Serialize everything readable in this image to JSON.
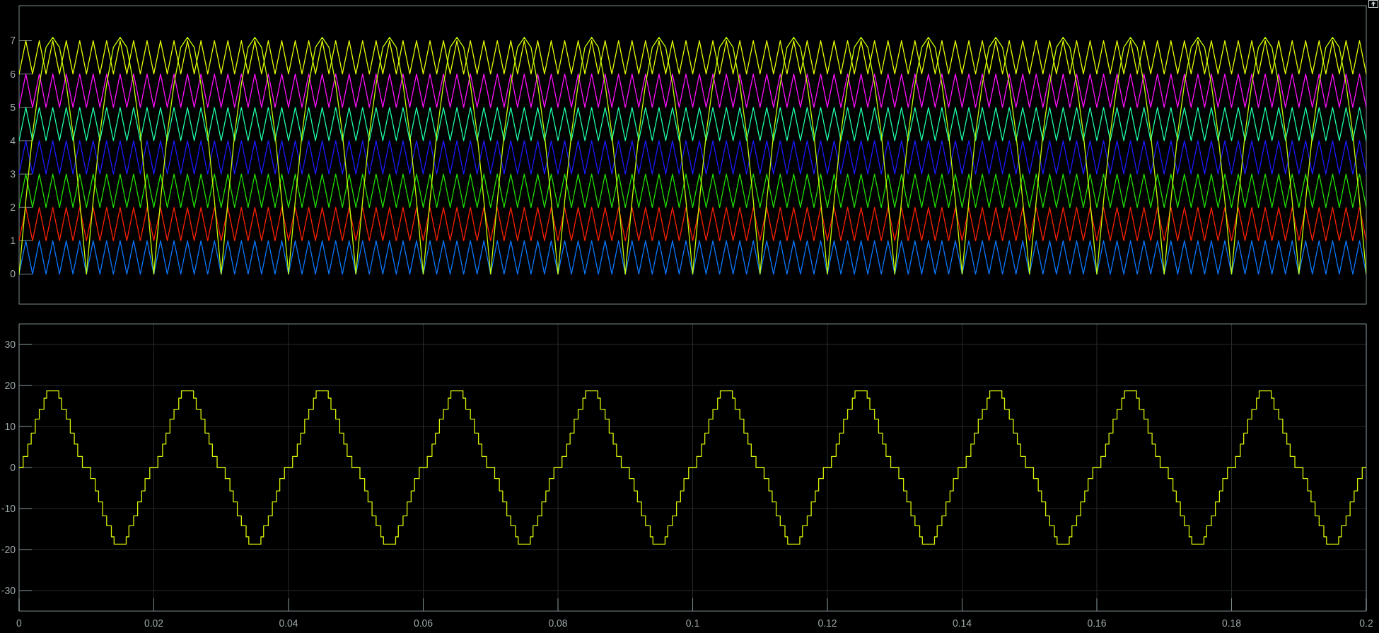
{
  "chart_data": [
    {
      "type": "line",
      "xlim": [
        0,
        0.2
      ],
      "ylim": [
        -0.9,
        8.05
      ],
      "yticks": [
        0,
        1,
        2,
        3,
        4,
        5,
        6,
        7
      ],
      "tick_labels": "y",
      "x": [
        0,
        0.001,
        0.002,
        0.003,
        0.004,
        0.005,
        0.006,
        0.007,
        0.008,
        0.009,
        0.01,
        0.011,
        0.012,
        0.013,
        0.014,
        0.015,
        0.016,
        0.017,
        0.018,
        0.019,
        0.02,
        0.021,
        0.022,
        0.023,
        0.024,
        0.025,
        0.026,
        0.027,
        0.028,
        0.029,
        0.03,
        0.031,
        0.032,
        0.033,
        0.034,
        0.035,
        0.036,
        0.037,
        0.038,
        0.039,
        0.04,
        0.041,
        0.042,
        0.043,
        0.044,
        0.045,
        0.046,
        0.047,
        0.048,
        0.049,
        0.05,
        0.051,
        0.052,
        0.053,
        0.054,
        0.055,
        0.056,
        0.057,
        0.058,
        0.059,
        0.06,
        0.061,
        0.062,
        0.063,
        0.064,
        0.065,
        0.066,
        0.067,
        0.068,
        0.069,
        0.07,
        0.071,
        0.072,
        0.073,
        0.074,
        0.075,
        0.076,
        0.077,
        0.078,
        0.079,
        0.08,
        0.081,
        0.082,
        0.083,
        0.084,
        0.085,
        0.086,
        0.087,
        0.088,
        0.089,
        0.09,
        0.091,
        0.092,
        0.093,
        0.094,
        0.095,
        0.096,
        0.097,
        0.098,
        0.099,
        0.1,
        0.101,
        0.102,
        0.103,
        0.104,
        0.105,
        0.106,
        0.107,
        0.108,
        0.109,
        0.11,
        0.111,
        0.112,
        0.113,
        0.114,
        0.115,
        0.116,
        0.117,
        0.118,
        0.119,
        0.12,
        0.121,
        0.122,
        0.123,
        0.124,
        0.125,
        0.126,
        0.127,
        0.128,
        0.129,
        0.13,
        0.131,
        0.132,
        0.133,
        0.134,
        0.135,
        0.136,
        0.137,
        0.138,
        0.139,
        0.14,
        0.141,
        0.142,
        0.143,
        0.144,
        0.145,
        0.146,
        0.147,
        0.148,
        0.149,
        0.15,
        0.151,
        0.152,
        0.153,
        0.154,
        0.155,
        0.156,
        0.157,
        0.158,
        0.159,
        0.16,
        0.161,
        0.162,
        0.163,
        0.164,
        0.165,
        0.166,
        0.167,
        0.168,
        0.169,
        0.17,
        0.171,
        0.172,
        0.173,
        0.174,
        0.175,
        0.176,
        0.177,
        0.178,
        0.179,
        0.18,
        0.181,
        0.182,
        0.183,
        0.184,
        0.185,
        0.186,
        0.187,
        0.188,
        0.189,
        0.19,
        0.191,
        0.192,
        0.193,
        0.194,
        0.195,
        0.196,
        0.197,
        0.198,
        0.199,
        0.2
      ],
      "series": [
        {
          "color": "#0a78ff",
          "values": [
            0,
            1,
            0,
            1,
            0,
            1,
            0,
            1,
            0,
            1,
            0,
            1,
            0,
            1,
            0,
            1,
            0,
            1,
            0,
            1,
            0,
            1,
            0,
            1,
            0,
            1,
            0,
            1,
            0,
            1,
            0,
            1,
            0,
            1,
            0,
            1,
            0,
            1,
            0,
            1,
            0,
            1,
            0,
            1,
            0,
            1,
            0,
            1,
            0,
            1,
            0,
            1,
            0,
            1,
            0,
            1,
            0,
            1,
            0,
            1,
            0,
            1,
            0,
            1,
            0,
            1,
            0,
            1,
            0,
            1,
            0,
            1,
            0,
            1,
            0,
            1,
            0,
            1,
            0,
            1,
            0,
            1,
            0,
            1,
            0,
            1,
            0,
            1,
            0,
            1,
            0,
            1,
            0,
            1,
            0,
            1,
            0,
            1,
            0,
            1,
            0,
            1,
            0,
            1,
            0,
            1,
            0,
            1,
            0,
            1,
            0,
            1,
            0,
            1,
            0,
            1,
            0,
            1,
            0,
            1,
            0,
            1,
            0,
            1,
            0,
            1,
            0,
            1,
            0,
            1,
            0,
            1,
            0,
            1,
            0,
            1,
            0,
            1,
            0,
            1,
            0,
            1,
            0,
            1,
            0,
            1,
            0,
            1,
            0,
            1,
            0,
            1,
            0,
            1,
            0,
            1,
            0,
            1,
            0,
            1,
            0,
            1,
            0,
            1,
            0,
            1,
            0,
            1,
            0,
            1,
            0,
            1,
            0,
            1,
            0,
            1,
            0,
            1,
            0,
            1,
            0,
            1,
            0,
            1,
            0,
            1,
            0,
            1,
            0,
            1,
            0,
            1,
            0,
            1,
            0,
            1,
            0,
            1,
            0,
            1,
            0
          ]
        },
        {
          "color": "#ff2200",
          "values": [
            1,
            2,
            1,
            2,
            1,
            2,
            1,
            2,
            1,
            2,
            1,
            2,
            1,
            2,
            1,
            2,
            1,
            2,
            1,
            2,
            1,
            2,
            1,
            2,
            1,
            2,
            1,
            2,
            1,
            2,
            1,
            2,
            1,
            2,
            1,
            2,
            1,
            2,
            1,
            2,
            1,
            2,
            1,
            2,
            1,
            2,
            1,
            2,
            1,
            2,
            1,
            2,
            1,
            2,
            1,
            2,
            1,
            2,
            1,
            2,
            1,
            2,
            1,
            2,
            1,
            2,
            1,
            2,
            1,
            2,
            1,
            2,
            1,
            2,
            1,
            2,
            1,
            2,
            1,
            2,
            1,
            2,
            1,
            2,
            1,
            2,
            1,
            2,
            1,
            2,
            1,
            2,
            1,
            2,
            1,
            2,
            1,
            2,
            1,
            2,
            1,
            2,
            1,
            2,
            1,
            2,
            1,
            2,
            1,
            2,
            1,
            2,
            1,
            2,
            1,
            2,
            1,
            2,
            1,
            2,
            1,
            2,
            1,
            2,
            1,
            2,
            1,
            2,
            1,
            2,
            1,
            2,
            1,
            2,
            1,
            2,
            1,
            2,
            1,
            2,
            1,
            2,
            1,
            2,
            1,
            2,
            1,
            2,
            1,
            2,
            1,
            2,
            1,
            2,
            1,
            2,
            1,
            2,
            1,
            2,
            1,
            2,
            1,
            2,
            1,
            2,
            1,
            2,
            1,
            2,
            1,
            2,
            1,
            2,
            1,
            2,
            1,
            2,
            1,
            2,
            1,
            2,
            1,
            2,
            1,
            2,
            1,
            2,
            1,
            2,
            1,
            2,
            1,
            2,
            1,
            2,
            1,
            2,
            1,
            2,
            1
          ]
        },
        {
          "color": "#22e000",
          "values": [
            2,
            3,
            2,
            3,
            2,
            3,
            2,
            3,
            2,
            3,
            2,
            3,
            2,
            3,
            2,
            3,
            2,
            3,
            2,
            3,
            2,
            3,
            2,
            3,
            2,
            3,
            2,
            3,
            2,
            3,
            2,
            3,
            2,
            3,
            2,
            3,
            2,
            3,
            2,
            3,
            2,
            3,
            2,
            3,
            2,
            3,
            2,
            3,
            2,
            3,
            2,
            3,
            2,
            3,
            2,
            3,
            2,
            3,
            2,
            3,
            2,
            3,
            2,
            3,
            2,
            3,
            2,
            3,
            2,
            3,
            2,
            3,
            2,
            3,
            2,
            3,
            2,
            3,
            2,
            3,
            2,
            3,
            2,
            3,
            2,
            3,
            2,
            3,
            2,
            3,
            2,
            3,
            2,
            3,
            2,
            3,
            2,
            3,
            2,
            3,
            2,
            3,
            2,
            3,
            2,
            3,
            2,
            3,
            2,
            3,
            2,
            3,
            2,
            3,
            2,
            3,
            2,
            3,
            2,
            3,
            2,
            3,
            2,
            3,
            2,
            3,
            2,
            3,
            2,
            3,
            2,
            3,
            2,
            3,
            2,
            3,
            2,
            3,
            2,
            3,
            2,
            3,
            2,
            3,
            2,
            3,
            2,
            3,
            2,
            3,
            2,
            3,
            2,
            3,
            2,
            3,
            2,
            3,
            2,
            3,
            2,
            3,
            2,
            3,
            2,
            3,
            2,
            3,
            2,
            3,
            2,
            3,
            2,
            3,
            2,
            3,
            2,
            3,
            2,
            3,
            2,
            3,
            2,
            3,
            2,
            3,
            2,
            3,
            2,
            3,
            2,
            3,
            2,
            3,
            2,
            3,
            2,
            3,
            2,
            3,
            2
          ]
        },
        {
          "color": "#1a1aff",
          "values": [
            3,
            4,
            3,
            4,
            3,
            4,
            3,
            4,
            3,
            4,
            3,
            4,
            3,
            4,
            3,
            4,
            3,
            4,
            3,
            4,
            3,
            4,
            3,
            4,
            3,
            4,
            3,
            4,
            3,
            4,
            3,
            4,
            3,
            4,
            3,
            4,
            3,
            4,
            3,
            4,
            3,
            4,
            3,
            4,
            3,
            4,
            3,
            4,
            3,
            4,
            3,
            4,
            3,
            4,
            3,
            4,
            3,
            4,
            3,
            4,
            3,
            4,
            3,
            4,
            3,
            4,
            3,
            4,
            3,
            4,
            3,
            4,
            3,
            4,
            3,
            4,
            3,
            4,
            3,
            4,
            3,
            4,
            3,
            4,
            3,
            4,
            3,
            4,
            3,
            4,
            3,
            4,
            3,
            4,
            3,
            4,
            3,
            4,
            3,
            4,
            3,
            4,
            3,
            4,
            3,
            4,
            3,
            4,
            3,
            4,
            3,
            4,
            3,
            4,
            3,
            4,
            3,
            4,
            3,
            4,
            3,
            4,
            3,
            4,
            3,
            4,
            3,
            4,
            3,
            4,
            3,
            4,
            3,
            4,
            3,
            4,
            3,
            4,
            3,
            4,
            3,
            4,
            3,
            4,
            3,
            4,
            3,
            4,
            3,
            4,
            3,
            4,
            3,
            4,
            3,
            4,
            3,
            4,
            3,
            4,
            3,
            4,
            3,
            4,
            3,
            4,
            3,
            4,
            3,
            4,
            3,
            4,
            3,
            4,
            3,
            4,
            3,
            4,
            3,
            4,
            3,
            4,
            3,
            4,
            3,
            4,
            3,
            4,
            3,
            4,
            3,
            4,
            3,
            4,
            3,
            4,
            3,
            4,
            3,
            4,
            3
          ]
        },
        {
          "color": "#1effa8",
          "values": [
            4,
            5,
            4,
            5,
            4,
            5,
            4,
            5,
            4,
            5,
            4,
            5,
            4,
            5,
            4,
            5,
            4,
            5,
            4,
            5,
            4,
            5,
            4,
            5,
            4,
            5,
            4,
            5,
            4,
            5,
            4,
            5,
            4,
            5,
            4,
            5,
            4,
            5,
            4,
            5,
            4,
            5,
            4,
            5,
            4,
            5,
            4,
            5,
            4,
            5,
            4,
            5,
            4,
            5,
            4,
            5,
            4,
            5,
            4,
            5,
            4,
            5,
            4,
            5,
            4,
            5,
            4,
            5,
            4,
            5,
            4,
            5,
            4,
            5,
            4,
            5,
            4,
            5,
            4,
            5,
            4,
            5,
            4,
            5,
            4,
            5,
            4,
            5,
            4,
            5,
            4,
            5,
            4,
            5,
            4,
            5,
            4,
            5,
            4,
            5,
            4,
            5,
            4,
            5,
            4,
            5,
            4,
            5,
            4,
            5,
            4,
            5,
            4,
            5,
            4,
            5,
            4,
            5,
            4,
            5,
            4,
            5,
            4,
            5,
            4,
            5,
            4,
            5,
            4,
            5,
            4,
            5,
            4,
            5,
            4,
            5,
            4,
            5,
            4,
            5,
            4,
            5,
            4,
            5,
            4,
            5,
            4,
            5,
            4,
            5,
            4,
            5,
            4,
            5,
            4,
            5,
            4,
            5,
            4,
            5,
            4,
            5,
            4,
            5,
            4,
            5,
            4,
            5,
            4,
            5,
            4,
            5,
            4,
            5,
            4,
            5,
            4,
            5,
            4,
            5,
            4,
            5,
            4,
            5,
            4,
            5,
            4,
            5,
            4,
            5,
            4,
            5,
            4,
            5,
            4,
            5,
            4,
            5,
            4,
            5,
            4
          ]
        },
        {
          "color": "#ff10ff",
          "values": [
            5,
            6,
            5,
            6,
            5,
            6,
            5,
            6,
            5,
            6,
            5,
            6,
            5,
            6,
            5,
            6,
            5,
            6,
            5,
            6,
            5,
            6,
            5,
            6,
            5,
            6,
            5,
            6,
            5,
            6,
            5,
            6,
            5,
            6,
            5,
            6,
            5,
            6,
            5,
            6,
            5,
            6,
            5,
            6,
            5,
            6,
            5,
            6,
            5,
            6,
            5,
            6,
            5,
            6,
            5,
            6,
            5,
            6,
            5,
            6,
            5,
            6,
            5,
            6,
            5,
            6,
            5,
            6,
            5,
            6,
            5,
            6,
            5,
            6,
            5,
            6,
            5,
            6,
            5,
            6,
            5,
            6,
            5,
            6,
            5,
            6,
            5,
            6,
            5,
            6,
            5,
            6,
            5,
            6,
            5,
            6,
            5,
            6,
            5,
            6,
            5,
            6,
            5,
            6,
            5,
            6,
            5,
            6,
            5,
            6,
            5,
            6,
            5,
            6,
            5,
            6,
            5,
            6,
            5,
            6,
            5,
            6,
            5,
            6,
            5,
            6,
            5,
            6,
            5,
            6,
            5,
            6,
            5,
            6,
            5,
            6,
            5,
            6,
            5,
            6,
            5,
            6,
            5,
            6,
            5,
            6,
            5,
            6,
            5,
            6,
            5,
            6,
            5,
            6,
            5,
            6,
            5,
            6,
            5,
            6,
            5,
            6,
            5,
            6,
            5,
            6,
            5,
            6,
            5,
            6,
            5,
            6,
            5,
            6,
            5,
            6,
            5,
            6,
            5,
            6,
            5,
            6,
            5,
            6,
            5,
            6,
            5,
            6,
            5,
            6,
            5,
            6,
            5,
            6,
            5,
            6,
            5,
            6,
            5,
            6,
            5
          ]
        },
        {
          "color": "#e8ff00",
          "values": [
            6,
            7,
            6,
            7,
            6,
            7,
            6,
            7,
            6,
            7,
            6,
            7,
            6,
            7,
            6,
            7,
            6,
            7,
            6,
            7,
            6,
            7,
            6,
            7,
            6,
            7,
            6,
            7,
            6,
            7,
            6,
            7,
            6,
            7,
            6,
            7,
            6,
            7,
            6,
            7,
            6,
            7,
            6,
            7,
            6,
            7,
            6,
            7,
            6,
            7,
            6,
            7,
            6,
            7,
            6,
            7,
            6,
            7,
            6,
            7,
            6,
            7,
            6,
            7,
            6,
            7,
            6,
            7,
            6,
            7,
            6,
            7,
            6,
            7,
            6,
            7,
            6,
            7,
            6,
            7,
            6,
            7,
            6,
            7,
            6,
            7,
            6,
            7,
            6,
            7,
            6,
            7,
            6,
            7,
            6,
            7,
            6,
            7,
            6,
            7,
            6,
            7,
            6,
            7,
            6,
            7,
            6,
            7,
            6,
            7,
            6,
            7,
            6,
            7,
            6,
            7,
            6,
            7,
            6,
            7,
            6,
            7,
            6,
            7,
            6,
            7,
            6,
            7,
            6,
            7,
            6,
            7,
            6,
            7,
            6,
            7,
            6,
            7,
            6,
            7,
            6,
            7,
            6,
            7,
            6,
            7,
            6,
            7,
            6,
            7,
            6,
            7,
            6,
            7,
            6,
            7,
            6,
            7,
            6,
            7,
            6,
            7,
            6,
            7,
            6,
            7,
            6,
            7,
            6,
            7,
            6,
            7,
            6,
            7,
            6,
            7,
            6,
            7,
            6,
            7,
            6,
            7,
            6,
            7,
            6,
            7,
            6,
            7,
            6,
            7,
            6,
            7,
            6,
            7,
            6,
            7,
            6,
            7,
            6,
            7,
            6
          ]
        },
        {
          "color": "#c8ff00",
          "values": [
            0,
            2.2,
            4.2,
            5.7,
            6.8,
            7.1,
            6.8,
            5.7,
            4.2,
            2.2,
            0,
            2.2,
            4.2,
            5.7,
            6.8,
            7.1,
            6.8,
            5.7,
            4.2,
            2.2,
            0,
            2.2,
            4.2,
            5.7,
            6.8,
            7.1,
            6.8,
            5.7,
            4.2,
            2.2,
            0,
            2.2,
            4.2,
            5.7,
            6.8,
            7.1,
            6.8,
            5.7,
            4.2,
            2.2,
            0,
            2.2,
            4.2,
            5.7,
            6.8,
            7.1,
            6.8,
            5.7,
            4.2,
            2.2,
            0,
            2.2,
            4.2,
            5.7,
            6.8,
            7.1,
            6.8,
            5.7,
            4.2,
            2.2,
            0,
            2.2,
            4.2,
            5.7,
            6.8,
            7.1,
            6.8,
            5.7,
            4.2,
            2.2,
            0,
            2.2,
            4.2,
            5.7,
            6.8,
            7.1,
            6.8,
            5.7,
            4.2,
            2.2,
            0,
            2.2,
            4.2,
            5.7,
            6.8,
            7.1,
            6.8,
            5.7,
            4.2,
            2.2,
            0,
            2.2,
            4.2,
            5.7,
            6.8,
            7.1,
            6.8,
            5.7,
            4.2,
            2.2,
            0,
            2.2,
            4.2,
            5.7,
            6.8,
            7.1,
            6.8,
            5.7,
            4.2,
            2.2,
            0,
            2.2,
            4.2,
            5.7,
            6.8,
            7.1,
            6.8,
            5.7,
            4.2,
            2.2,
            0,
            2.2,
            4.2,
            5.7,
            6.8,
            7.1,
            6.8,
            5.7,
            4.2,
            2.2,
            0,
            2.2,
            4.2,
            5.7,
            6.8,
            7.1,
            6.8,
            5.7,
            4.2,
            2.2,
            0,
            2.2,
            4.2,
            5.7,
            6.8,
            7.1,
            6.8,
            5.7,
            4.2,
            2.2,
            0,
            2.2,
            4.2,
            5.7,
            6.8,
            7.1,
            6.8,
            5.7,
            4.2,
            2.2,
            0,
            2.2,
            4.2,
            5.7,
            6.8,
            7.1,
            6.8,
            5.7,
            4.2,
            2.2,
            0,
            2.2,
            4.2,
            5.7,
            6.8,
            7.1,
            6.8,
            5.7,
            4.2,
            2.2,
            0,
            2.2,
            4.2,
            5.7,
            6.8,
            7.1,
            6.8,
            5.7,
            4.2,
            2.2,
            0,
            2.2,
            4.2,
            5.7,
            6.8,
            7.1,
            6.8,
            5.7,
            4.2,
            2.2,
            0
          ]
        }
      ]
    },
    {
      "type": "step",
      "xlim": [
        0,
        0.2
      ],
      "ylim": [
        -35,
        35
      ],
      "xticks": [
        0,
        0.02,
        0.04,
        0.06,
        0.08,
        0.1,
        0.12,
        0.14,
        0.16,
        0.18,
        0.2
      ],
      "yticks": [
        -30,
        -20,
        -10,
        0,
        10,
        20,
        30
      ],
      "grid": true,
      "x": [
        0,
        0.0006,
        0.0013,
        0.0018,
        0.0024,
        0.003,
        0.0037,
        0.0041,
        0.0059,
        0.0063,
        0.007,
        0.0076,
        0.0082,
        0.0087,
        0.0094,
        0.0106,
        0.0113,
        0.0118,
        0.0124,
        0.013,
        0.0137,
        0.0141,
        0.0159,
        0.0163,
        0.017,
        0.0176,
        0.0182,
        0.0187,
        0.0194,
        0.0206,
        0.0213,
        0.0218,
        0.0224,
        0.023,
        0.0237,
        0.0241,
        0.0259,
        0.0263,
        0.027,
        0.0276,
        0.0282,
        0.0287,
        0.0294,
        0.0306,
        0.0313,
        0.0318,
        0.0324,
        0.033,
        0.0337,
        0.0341,
        0.0359,
        0.0363,
        0.037,
        0.0376,
        0.0382,
        0.0387,
        0.0394,
        0.0406,
        0.0413,
        0.0418,
        0.0424,
        0.043,
        0.0437,
        0.0441,
        0.0459,
        0.0463,
        0.047,
        0.0476,
        0.0482,
        0.0487,
        0.0494,
        0.0506,
        0.0513,
        0.0518,
        0.0524,
        0.053,
        0.0537,
        0.0541,
        0.0559,
        0.0563,
        0.057,
        0.0576,
        0.0582,
        0.0587,
        0.0594,
        0.0606,
        0.0613,
        0.0618,
        0.0624,
        0.063,
        0.0637,
        0.0641,
        0.0659,
        0.0663,
        0.067,
        0.0676,
        0.0682,
        0.0687,
        0.0694,
        0.0706,
        0.0713,
        0.0718,
        0.0724,
        0.073,
        0.0737,
        0.0741,
        0.0759,
        0.0763,
        0.077,
        0.0776,
        0.0782,
        0.0787,
        0.0794,
        0.0806,
        0.0813,
        0.0818,
        0.0824,
        0.083,
        0.0837,
        0.0841,
        0.0859,
        0.0863,
        0.087,
        0.0876,
        0.0882,
        0.0887,
        0.0894,
        0.0906,
        0.0913,
        0.0918,
        0.0924,
        0.093,
        0.0937,
        0.0941,
        0.0959,
        0.0963,
        0.097,
        0.0976,
        0.0982,
        0.0987,
        0.0994,
        0.1006,
        0.1013,
        0.1018,
        0.1024,
        0.103,
        0.1037,
        0.1041,
        0.1059,
        0.1063,
        0.107,
        0.1076,
        0.1082,
        0.1087,
        0.1094,
        0.1106,
        0.1113,
        0.1118,
        0.1124,
        0.113,
        0.1137,
        0.1141,
        0.1159,
        0.1163,
        0.117,
        0.1176,
        0.1182,
        0.1187,
        0.1194,
        0.1206,
        0.1213,
        0.1218,
        0.1224,
        0.123,
        0.1237,
        0.1241,
        0.1259,
        0.1263,
        0.127,
        0.1276,
        0.1282,
        0.1287,
        0.1294,
        0.1306,
        0.1313,
        0.1318,
        0.1324,
        0.133,
        0.1337,
        0.1341,
        0.1359,
        0.1363,
        0.137,
        0.1376,
        0.1382,
        0.1387,
        0.1394,
        0.1406,
        0.1413,
        0.1418,
        0.1424,
        0.143,
        0.1437,
        0.1441,
        0.1459,
        0.1463,
        0.147,
        0.1476,
        0.1482,
        0.1487,
        0.1494,
        0.1506,
        0.1513,
        0.1518,
        0.1524,
        0.153,
        0.1537,
        0.1541,
        0.1559,
        0.1563,
        0.157,
        0.1576,
        0.1582,
        0.1587,
        0.1594,
        0.1606,
        0.1613,
        0.1618,
        0.1624,
        0.163,
        0.1637,
        0.1641,
        0.1659,
        0.1663,
        0.167,
        0.1676,
        0.1682,
        0.1687,
        0.1694,
        0.1706,
        0.1713,
        0.1718,
        0.1724,
        0.173,
        0.1737,
        0.1741,
        0.1759,
        0.1763,
        0.177,
        0.1776,
        0.1782,
        0.1787,
        0.1794,
        0.1806,
        0.1813,
        0.1818,
        0.1824,
        0.183,
        0.1837,
        0.1841,
        0.1859,
        0.1863,
        0.187,
        0.1876,
        0.1882,
        0.1887,
        0.1894,
        0.1906,
        0.1913,
        0.1918,
        0.1924,
        0.193,
        0.1937,
        0.1941,
        0.1959,
        0.1963,
        0.197,
        0.1976,
        0.1982,
        0.1987,
        0.1994,
        0.2
      ],
      "series": [
        {
          "color": "#d8f000",
          "values": [
            0,
            2.7,
            5.7,
            8.4,
            11.8,
            14.2,
            16.9,
            18.7,
            16.9,
            14.2,
            11.8,
            8.4,
            5.7,
            2.7,
            0,
            -2.7,
            -5.7,
            -8.4,
            -11.8,
            -14.2,
            -16.9,
            -18.7,
            -16.9,
            -14.2,
            -11.8,
            -8.4,
            -5.7,
            -2.7,
            0,
            2.7,
            5.7,
            8.4,
            11.8,
            14.2,
            16.9,
            18.7,
            16.9,
            14.2,
            11.8,
            8.4,
            5.7,
            2.7,
            0,
            -2.7,
            -5.7,
            -8.4,
            -11.8,
            -14.2,
            -16.9,
            -18.7,
            -16.9,
            -14.2,
            -11.8,
            -8.4,
            -5.7,
            -2.7,
            0,
            2.7,
            5.7,
            8.4,
            11.8,
            14.2,
            16.9,
            18.7,
            16.9,
            14.2,
            11.8,
            8.4,
            5.7,
            2.7,
            0,
            -2.7,
            -5.7,
            -8.4,
            -11.8,
            -14.2,
            -16.9,
            -18.7,
            -16.9,
            -14.2,
            -11.8,
            -8.4,
            -5.7,
            -2.7,
            0,
            2.7,
            5.7,
            8.4,
            11.8,
            14.2,
            16.9,
            18.7,
            16.9,
            14.2,
            11.8,
            8.4,
            5.7,
            2.7,
            0,
            -2.7,
            -5.7,
            -8.4,
            -11.8,
            -14.2,
            -16.9,
            -18.7,
            -16.9,
            -14.2,
            -11.8,
            -8.4,
            -5.7,
            -2.7,
            0,
            2.7,
            5.7,
            8.4,
            11.8,
            14.2,
            16.9,
            18.7,
            16.9,
            14.2,
            11.8,
            8.4,
            5.7,
            2.7,
            0,
            -2.7,
            -5.7,
            -8.4,
            -11.8,
            -14.2,
            -16.9,
            -18.7,
            -16.9,
            -14.2,
            -11.8,
            -8.4,
            -5.7,
            -2.7,
            0,
            2.7,
            5.7,
            8.4,
            11.8,
            14.2,
            16.9,
            18.7,
            16.9,
            14.2,
            11.8,
            8.4,
            5.7,
            2.7,
            0,
            -2.7,
            -5.7,
            -8.4,
            -11.8,
            -14.2,
            -16.9,
            -18.7,
            -16.9,
            -14.2,
            -11.8,
            -8.4,
            -5.7,
            -2.7,
            0,
            2.7,
            5.7,
            8.4,
            11.8,
            14.2,
            16.9,
            18.7,
            16.9,
            14.2,
            11.8,
            8.4,
            5.7,
            2.7,
            0,
            -2.7,
            -5.7,
            -8.4,
            -11.8,
            -14.2,
            -16.9,
            -18.7,
            -16.9,
            -14.2,
            -11.8,
            -8.4,
            -5.7,
            -2.7,
            0,
            2.7,
            5.7,
            8.4,
            11.8,
            14.2,
            16.9,
            18.7,
            16.9,
            14.2,
            11.8,
            8.4,
            5.7,
            2.7,
            0,
            -2.7,
            -5.7,
            -8.4,
            -11.8,
            -14.2,
            -16.9,
            -18.7,
            -16.9,
            -14.2,
            -11.8,
            -8.4,
            -5.7,
            -2.7,
            0,
            2.7,
            5.7,
            8.4,
            11.8,
            14.2,
            16.9,
            18.7,
            16.9,
            14.2,
            11.8,
            8.4,
            5.7,
            2.7,
            0,
            -2.7,
            -5.7,
            -8.4,
            -11.8,
            -14.2,
            -16.9,
            -18.7,
            -16.9,
            -14.2,
            -11.8,
            -8.4,
            -5.7,
            -2.7,
            0,
            2.7,
            5.7,
            8.4,
            11.8,
            14.2,
            16.9,
            18.7,
            16.9,
            14.2,
            11.8,
            8.4,
            5.7,
            2.7,
            0,
            -2.7,
            -5.7,
            -8.4,
            -11.8,
            -14.2,
            -16.9,
            -18.7,
            -16.9,
            -14.2,
            -11.8,
            -8.4,
            -5.7,
            -2.7,
            0,
            0
          ]
        }
      ]
    }
  ]
}
